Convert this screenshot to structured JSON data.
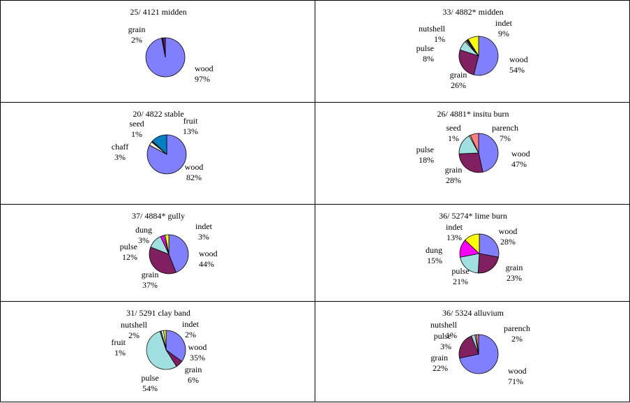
{
  "colors": {
    "wood": "#8080ff",
    "grain": "#802060",
    "pulse": "#a0e0e0",
    "nutshell": "#ffffff",
    "indet": "#ffff00",
    "seed": "#ffffcc",
    "fruit": "#0080c0",
    "chaff": "#fff8d0",
    "dung": "#ff00ff",
    "parench": "#ff8080",
    "dark": "#202020"
  },
  "chart_data": [
    {
      "type": "pie",
      "title": "25/ 4121 midden",
      "slices": [
        {
          "label": "wood",
          "pct": "97%",
          "value": 97,
          "color": "#8080ff"
        },
        {
          "label": "",
          "pct": "",
          "value": 1,
          "color": "#202020"
        },
        {
          "label": "grain",
          "pct": "2%",
          "value": 2,
          "color": "#802060"
        }
      ]
    },
    {
      "type": "pie",
      "title": "33/ 4882* midden",
      "slices": [
        {
          "label": "wood",
          "pct": "54%",
          "value": 54,
          "color": "#8080ff"
        },
        {
          "label": "grain",
          "pct": "26%",
          "value": 26,
          "color": "#802060"
        },
        {
          "label": "pulse",
          "pct": "8%",
          "value": 8,
          "color": "#a0e0e0"
        },
        {
          "label": "nutshell",
          "pct": "1%",
          "value": 1,
          "color": "#ffffff"
        },
        {
          "label": "",
          "pct": "",
          "value": 2,
          "color": "#202020"
        },
        {
          "label": "indet",
          "pct": "9%",
          "value": 9,
          "color": "#ffff00"
        }
      ]
    },
    {
      "type": "pie",
      "title": "20/ 4822 stable",
      "slices": [
        {
          "label": "wood",
          "pct": "82%",
          "value": 82,
          "color": "#8080ff"
        },
        {
          "label": "chaff",
          "pct": "3%",
          "value": 3,
          "color": "#fff8d0"
        },
        {
          "label": "seed",
          "pct": "1%",
          "value": 1,
          "color": "#202020"
        },
        {
          "label": "fruit",
          "pct": "13%",
          "value": 13,
          "color": "#0080c0"
        }
      ]
    },
    {
      "type": "pie",
      "title": "26/ 4881* insitu burn",
      "slices": [
        {
          "label": "wood",
          "pct": "47%",
          "value": 47,
          "color": "#8080ff"
        },
        {
          "label": "grain",
          "pct": "28%",
          "value": 28,
          "color": "#802060"
        },
        {
          "label": "pulse",
          "pct": "18%",
          "value": 18,
          "color": "#a0e0e0"
        },
        {
          "label": "seed",
          "pct": "1%",
          "value": 1,
          "color": "#ffffcc"
        },
        {
          "label": "parench",
          "pct": "7%",
          "value": 7,
          "color": "#ff8080"
        }
      ]
    },
    {
      "type": "pie",
      "title": "37/ 4884* gully",
      "slices": [
        {
          "label": "wood",
          "pct": "44%",
          "value": 44,
          "color": "#8080ff"
        },
        {
          "label": "grain",
          "pct": "37%",
          "value": 37,
          "color": "#802060"
        },
        {
          "label": "pulse",
          "pct": "12%",
          "value": 12,
          "color": "#a0e0e0"
        },
        {
          "label": "dung",
          "pct": "3%",
          "value": 3,
          "color": "#ff00ff"
        },
        {
          "label": "",
          "pct": "",
          "value": 1,
          "color": "#ffffff"
        },
        {
          "label": "indet",
          "pct": "3%",
          "value": 3,
          "color": "#ffff00"
        }
      ]
    },
    {
      "type": "pie",
      "title": "36/ 5274* lime burn",
      "slices": [
        {
          "label": "wood",
          "pct": "28%",
          "value": 28,
          "color": "#8080ff"
        },
        {
          "label": "grain",
          "pct": "23%",
          "value": 23,
          "color": "#802060"
        },
        {
          "label": "pulse",
          "pct": "21%",
          "value": 21,
          "color": "#a0e0e0"
        },
        {
          "label": "dung",
          "pct": "15%",
          "value": 15,
          "color": "#ff00ff"
        },
        {
          "label": "indet",
          "pct": "13%",
          "value": 13,
          "color": "#ffff00"
        }
      ]
    },
    {
      "type": "pie",
      "title": "31/ 5291 clay band",
      "slices": [
        {
          "label": "wood",
          "pct": "35%",
          "value": 35,
          "color": "#8080ff"
        },
        {
          "label": "grain",
          "pct": "6%",
          "value": 6,
          "color": "#802060"
        },
        {
          "label": "pulse",
          "pct": "54%",
          "value": 54,
          "color": "#a0e0e0"
        },
        {
          "label": "fruit",
          "pct": "1%",
          "value": 1,
          "color": "#0080c0"
        },
        {
          "label": "nutshell",
          "pct": "2%",
          "value": 2,
          "color": "#ffffff"
        },
        {
          "label": "indet",
          "pct": "2%",
          "value": 2,
          "color": "#ffff00"
        }
      ]
    },
    {
      "type": "pie",
      "title": "36/ 5324 alluvium",
      "slices": [
        {
          "label": "wood",
          "pct": "71%",
          "value": 71,
          "color": "#8080ff"
        },
        {
          "label": "grain",
          "pct": "22%",
          "value": 22,
          "color": "#802060"
        },
        {
          "label": "pulse",
          "pct": "3%",
          "value": 3,
          "color": "#a0e0e0"
        },
        {
          "label": "nutshell",
          "pct": "1%",
          "value": 1,
          "color": "#ffffff"
        },
        {
          "label": "parench",
          "pct": "2%",
          "value": 2,
          "color": "#ff8080"
        }
      ]
    }
  ]
}
